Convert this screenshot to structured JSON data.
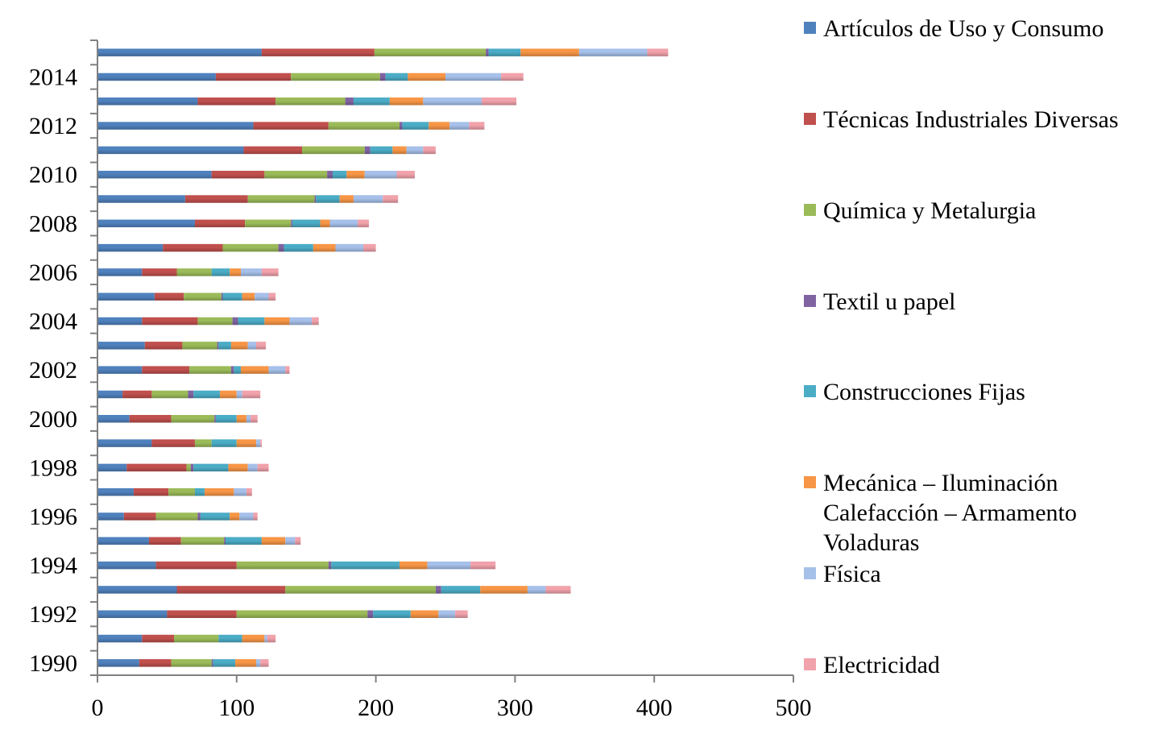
{
  "chart_data": {
    "type": "bar",
    "orientation": "horizontal",
    "stacked": true,
    "title": "",
    "xlabel": "",
    "ylabel": "",
    "xlim": [
      0,
      500
    ],
    "x_ticks": [
      "0",
      "100",
      "200",
      "300",
      "400",
      "500"
    ],
    "grid": false,
    "legend_position": "right",
    "categories": [
      "1990",
      "1991",
      "1992",
      "1993",
      "1994",
      "1995",
      "1996",
      "1997",
      "1998",
      "1999",
      "2000",
      "2001",
      "2002",
      "2003",
      "2004",
      "2005",
      "2006",
      "2007",
      "2008",
      "2009",
      "2010",
      "2011",
      "2012",
      "2013",
      "2014",
      "2015"
    ],
    "category_labels": [
      "1990",
      "",
      "1992",
      "",
      "1994",
      "",
      "1996",
      "",
      "1998",
      "",
      "2000",
      "",
      "2002",
      "",
      "2004",
      "",
      "2006",
      "",
      "2008",
      "",
      "2010",
      "",
      "2012",
      "",
      "2014",
      ""
    ],
    "series": [
      {
        "name": "Artículos de Uso y Consumo",
        "color": "#4F81BD",
        "values": [
          30,
          32,
          50,
          57,
          42,
          37,
          19,
          26,
          21,
          39,
          23,
          18,
          32,
          34,
          32,
          41,
          32,
          47,
          70,
          63,
          82,
          105,
          112,
          72,
          85,
          118
        ]
      },
      {
        "name": "Técnicas Industriales Diversas",
        "color": "#C0504D",
        "values": [
          23,
          23,
          50,
          78,
          58,
          23,
          23,
          25,
          43,
          31,
          30,
          21,
          34,
          27,
          40,
          21,
          25,
          43,
          36,
          45,
          38,
          42,
          54,
          56,
          54,
          81
        ]
      },
      {
        "name": "Química y Metalurgia",
        "color": "#9BBB59",
        "values": [
          29,
          32,
          94,
          108,
          66,
          31,
          30,
          19,
          3,
          12,
          31,
          26,
          30,
          25,
          25,
          27,
          25,
          40,
          33,
          48,
          45,
          45,
          51,
          50,
          64,
          80
        ]
      },
      {
        "name": "Textil u papel",
        "color": "#8064A2",
        "values": [
          1,
          0,
          4,
          4,
          2,
          1,
          2,
          0,
          2,
          0,
          1,
          4,
          2,
          1,
          4,
          1,
          0,
          4,
          1,
          1,
          4,
          4,
          2,
          6,
          4,
          2
        ]
      },
      {
        "name": "Construcciones Fijas",
        "color": "#4BACC6",
        "values": [
          16,
          17,
          27,
          28,
          49,
          26,
          21,
          7,
          25,
          18,
          15,
          19,
          5,
          9,
          19,
          14,
          13,
          21,
          20,
          17,
          10,
          16,
          19,
          26,
          16,
          23
        ]
      },
      {
        "name": "Mecánica – Iluminación Calefacción – Armamento Voladuras",
        "color": "#F79646",
        "values": [
          15,
          16,
          20,
          34,
          20,
          17,
          7,
          21,
          14,
          14,
          7,
          12,
          20,
          12,
          18,
          9,
          8,
          16,
          7,
          10,
          13,
          10,
          15,
          24,
          27,
          42
        ]
      },
      {
        "name": "Física",
        "color": "#A6C0EA",
        "values": [
          3,
          2,
          12,
          13,
          31,
          7,
          10,
          9,
          7,
          3,
          3,
          4,
          12,
          6,
          16,
          10,
          15,
          20,
          20,
          21,
          23,
          12,
          14,
          42,
          40,
          49
        ]
      },
      {
        "name": "Electricidad",
        "color": "#F1A2AB",
        "values": [
          6,
          6,
          9,
          18,
          18,
          4,
          3,
          4,
          8,
          1,
          5,
          13,
          3,
          7,
          5,
          5,
          12,
          9,
          8,
          11,
          13,
          9,
          11,
          25,
          16,
          15
        ]
      }
    ]
  }
}
